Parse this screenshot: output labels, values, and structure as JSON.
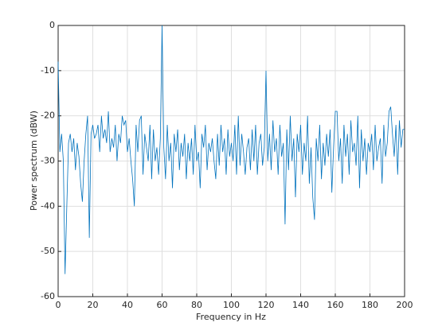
{
  "chart_data": {
    "type": "line",
    "xlabel": "Frequency in Hz",
    "ylabel": "Power spectrum (dBW)",
    "x": [
      0,
      1,
      2,
      3,
      4,
      5,
      6,
      7,
      8,
      9,
      10,
      11,
      12,
      13,
      14,
      15,
      16,
      17,
      18,
      19,
      20,
      21,
      22,
      23,
      24,
      25,
      26,
      27,
      28,
      29,
      30,
      31,
      32,
      33,
      34,
      35,
      36,
      37,
      38,
      39,
      40,
      41,
      42,
      43,
      44,
      45,
      46,
      47,
      48,
      49,
      50,
      51,
      52,
      53,
      54,
      55,
      56,
      57,
      58,
      59,
      60,
      61,
      62,
      63,
      64,
      65,
      66,
      67,
      68,
      69,
      70,
      71,
      72,
      73,
      74,
      75,
      76,
      77,
      78,
      79,
      80,
      81,
      82,
      83,
      84,
      85,
      86,
      87,
      88,
      89,
      90,
      91,
      92,
      93,
      94,
      95,
      96,
      97,
      98,
      99,
      100,
      101,
      102,
      103,
      104,
      105,
      106,
      107,
      108,
      109,
      110,
      111,
      112,
      113,
      114,
      115,
      116,
      117,
      118,
      119,
      120,
      121,
      122,
      123,
      124,
      125,
      126,
      127,
      128,
      129,
      130,
      131,
      132,
      133,
      134,
      135,
      136,
      137,
      138,
      139,
      140,
      141,
      142,
      143,
      144,
      145,
      146,
      147,
      148,
      149,
      150,
      151,
      152,
      153,
      154,
      155,
      156,
      157,
      158,
      159,
      160,
      161,
      162,
      163,
      164,
      165,
      166,
      167,
      168,
      169,
      170,
      171,
      172,
      173,
      174,
      175,
      176,
      177,
      178,
      179,
      180,
      181,
      182,
      183,
      184,
      185,
      186,
      187,
      188,
      189,
      190,
      191,
      192,
      193,
      194,
      195,
      196,
      197,
      198,
      199,
      200
    ],
    "series": [
      {
        "color": "#0072bd",
        "values": [
          -8,
          -28,
          -24,
          -30,
          -55,
          -40,
          -26,
          -24,
          -28,
          -25,
          -32,
          -26,
          -29,
          -35,
          -39,
          -30,
          -24,
          -20,
          -47,
          -24,
          -22,
          -25,
          -24,
          -22,
          -28,
          -20,
          -25,
          -23,
          -26,
          -19,
          -28,
          -25,
          -27,
          -22,
          -30,
          -24,
          -26,
          -20,
          -22,
          -21,
          -28,
          -25,
          -30,
          -34,
          -40,
          -22,
          -28,
          -21,
          -20,
          -33,
          -24,
          -27,
          -30,
          -22,
          -34,
          -23,
          -30,
          -27,
          -33,
          -25,
          0,
          -27,
          -34,
          -22,
          -30,
          -26,
          -36,
          -24,
          -28,
          -23,
          -32,
          -26,
          -29,
          -24,
          -34,
          -26,
          -30,
          -25,
          -33,
          -22,
          -30,
          -28,
          -36,
          -24,
          -27,
          -22,
          -32,
          -26,
          -28,
          -25,
          -30,
          -34,
          -24,
          -31,
          -22,
          -28,
          -25,
          -33,
          -23,
          -29,
          -26,
          -30,
          -22,
          -33,
          -20,
          -31,
          -24,
          -28,
          -33,
          -27,
          -25,
          -32,
          -23,
          -30,
          -22,
          -33,
          -26,
          -24,
          -31,
          -27,
          -10,
          -30,
          -24,
          -32,
          -21,
          -28,
          -25,
          -33,
          -22,
          -29,
          -26,
          -44,
          -23,
          -32,
          -20,
          -30,
          -25,
          -38,
          -24,
          -28,
          -22,
          -33,
          -26,
          -30,
          -20,
          -35,
          -27,
          -38,
          -43,
          -25,
          -30,
          -22,
          -34,
          -26,
          -31,
          -24,
          -29,
          -23,
          -37,
          -27,
          -19,
          -19,
          -30,
          -25,
          -35,
          -22,
          -29,
          -24,
          -33,
          -21,
          -28,
          -26,
          -31,
          -20,
          -36,
          -23,
          -30,
          -25,
          -33,
          -26,
          -28,
          -24,
          -32,
          -22,
          -30,
          -27,
          -25,
          -35,
          -22,
          -29,
          -26,
          -19,
          -18,
          -24,
          -29,
          -22,
          -33,
          -21,
          -27,
          -23,
          -23
        ]
      }
    ],
    "xlim": [
      0,
      200
    ],
    "xticks": [
      0,
      20,
      40,
      60,
      80,
      100,
      120,
      140,
      160,
      180,
      200
    ],
    "ylim": [
      -60,
      0
    ],
    "yticks": [
      -60,
      -50,
      -40,
      -30,
      -20,
      -10,
      0
    ],
    "grid": true
  }
}
